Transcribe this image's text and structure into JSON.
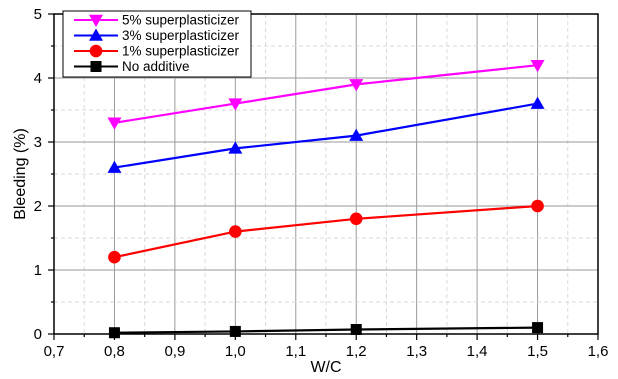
{
  "chart_data": {
    "type": "line",
    "title": "",
    "xlabel": "W/C",
    "ylabel": "Bleeding (%)",
    "xlim": [
      0.7,
      1.6
    ],
    "ylim": [
      0,
      5
    ],
    "x_ticks": [
      "0,7",
      "0,8",
      "0,9",
      "1,0",
      "1,1",
      "1,2",
      "1,3",
      "1,4",
      "1,5",
      "1,6"
    ],
    "y_ticks": [
      "0",
      "1",
      "2",
      "3",
      "4",
      "5"
    ],
    "grid": "major solid, minor dashed",
    "legend_position": "top-left",
    "x": [
      0.8,
      1.0,
      1.2,
      1.5
    ],
    "series": [
      {
        "name": "5% superplasticizer",
        "color": "#ff00ff",
        "marker": "triangle-down",
        "values": [
          3.3,
          3.6,
          3.9,
          4.2
        ]
      },
      {
        "name": "3% superplasticizer",
        "color": "#0000ff",
        "marker": "triangle-up",
        "values": [
          2.6,
          2.9,
          3.1,
          3.6
        ]
      },
      {
        "name": "1% superplasticizer",
        "color": "#ff0000",
        "marker": "circle",
        "values": [
          1.2,
          1.6,
          1.8,
          2.0
        ]
      },
      {
        "name": "No additive",
        "color": "#000000",
        "marker": "square",
        "values": [
          0.02,
          0.04,
          0.07,
          0.1
        ]
      }
    ]
  }
}
